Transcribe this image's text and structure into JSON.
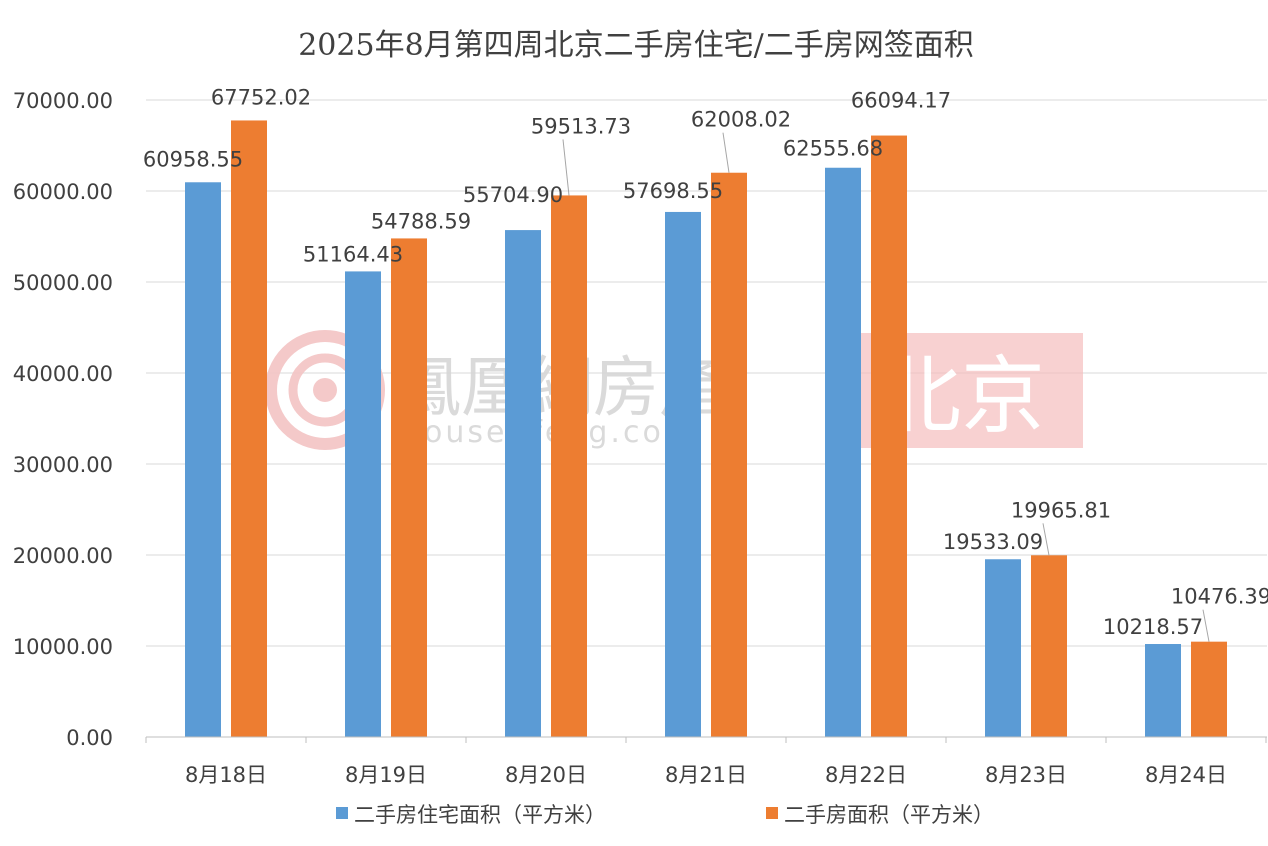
{
  "watermark": {
    "brand": "鳳凰網房產",
    "url": "house.ifeng.com",
    "city": "北京"
  },
  "colors": {
    "series1": "#5b9bd5",
    "series2": "#ed7d31",
    "grid": "#d9d9d9",
    "text": "#404040"
  },
  "chart_data": {
    "type": "bar",
    "title": "2025年8月第四周北京二手房住宅/二手房网签面积",
    "categories": [
      "8月18日",
      "8月19日",
      "8月20日",
      "8月21日",
      "8月22日",
      "8月23日",
      "8月24日"
    ],
    "series": [
      {
        "name": "二手房住宅面积（平方米）",
        "values": [
          60958.55,
          51164.43,
          55704.9,
          57698.55,
          62555.68,
          19533.09,
          10218.57
        ],
        "labels": [
          "60958.55",
          "51164.43",
          "55704.90",
          "57698.55",
          "62555.68",
          "19533.09",
          "10218.57"
        ]
      },
      {
        "name": "二手房面积（平方米）",
        "values": [
          67752.02,
          54788.59,
          59513.73,
          62008.02,
          66094.17,
          19965.81,
          10476.39
        ],
        "labels": [
          "67752.02",
          "54788.59",
          "59513.73",
          "62008.02",
          "66094.17",
          "19965.81",
          "10476.39"
        ]
      }
    ],
    "yticks": [
      "0.00",
      "10000.00",
      "20000.00",
      "30000.00",
      "40000.00",
      "50000.00",
      "60000.00",
      "70000.00"
    ],
    "ylim": [
      0,
      70000
    ],
    "grid": true,
    "legend_position": "bottom"
  }
}
